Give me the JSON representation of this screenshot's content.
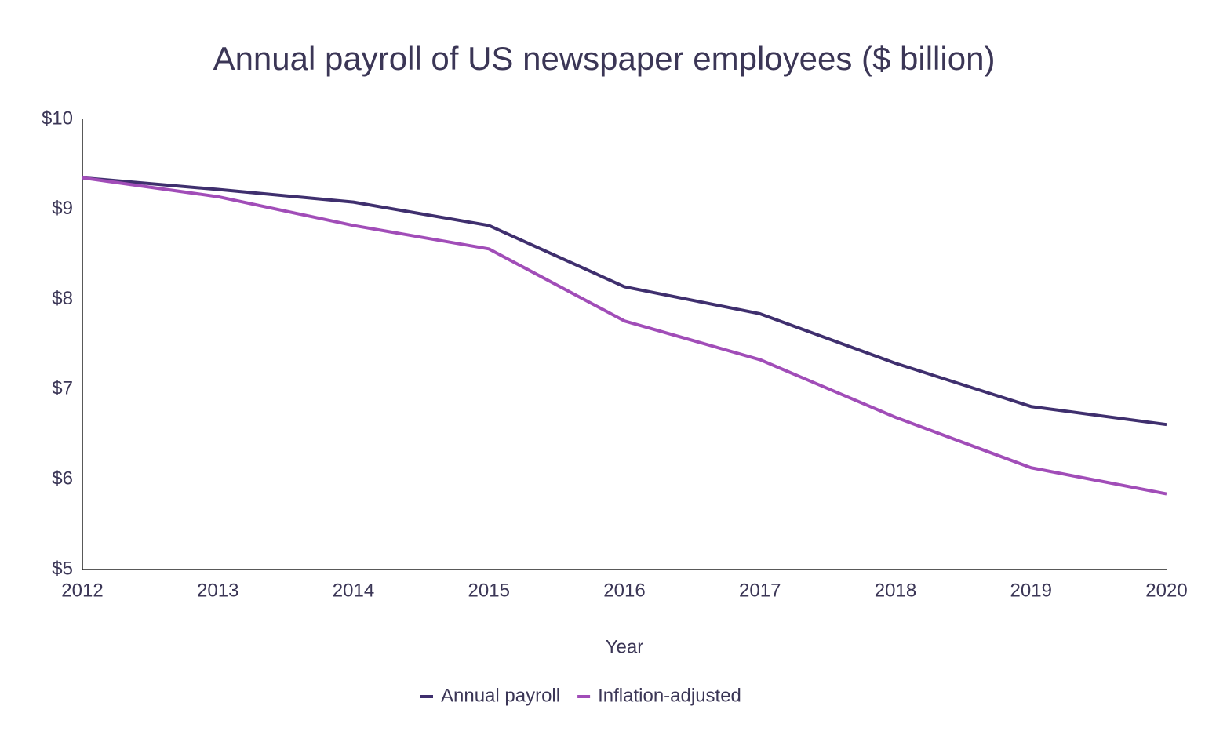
{
  "chart_data": {
    "type": "line",
    "title": "Annual payroll of US newspaper employees ($ billion)",
    "x_label": "Year",
    "x": [
      2012,
      2013,
      2014,
      2015,
      2016,
      2017,
      2018,
      2019,
      2020
    ],
    "series": [
      {
        "name": "Annual payroll",
        "color": "#3f2f6e",
        "values": [
          9.35,
          9.22,
          9.08,
          8.82,
          8.14,
          7.84,
          7.29,
          6.81,
          6.61
        ]
      },
      {
        "name": "Inflation-adjusted",
        "color": "#a14db8",
        "values": [
          9.35,
          9.14,
          8.82,
          8.56,
          7.76,
          7.33,
          6.69,
          6.13,
          5.84
        ]
      }
    ],
    "xlim": [
      2012,
      2020
    ],
    "xticks": [
      2012,
      2013,
      2014,
      2015,
      2016,
      2017,
      2018,
      2019,
      2020
    ],
    "ylim": [
      5,
      10
    ],
    "yticks": [
      {
        "value": 5,
        "label": "$5"
      },
      {
        "value": 6,
        "label": "$6"
      },
      {
        "value": 7,
        "label": "$7"
      },
      {
        "value": 8,
        "label": "$8"
      },
      {
        "value": 9,
        "label": "$9"
      },
      {
        "value": 10,
        "label": "$10"
      }
    ],
    "grid": false,
    "legend": "bottom"
  }
}
